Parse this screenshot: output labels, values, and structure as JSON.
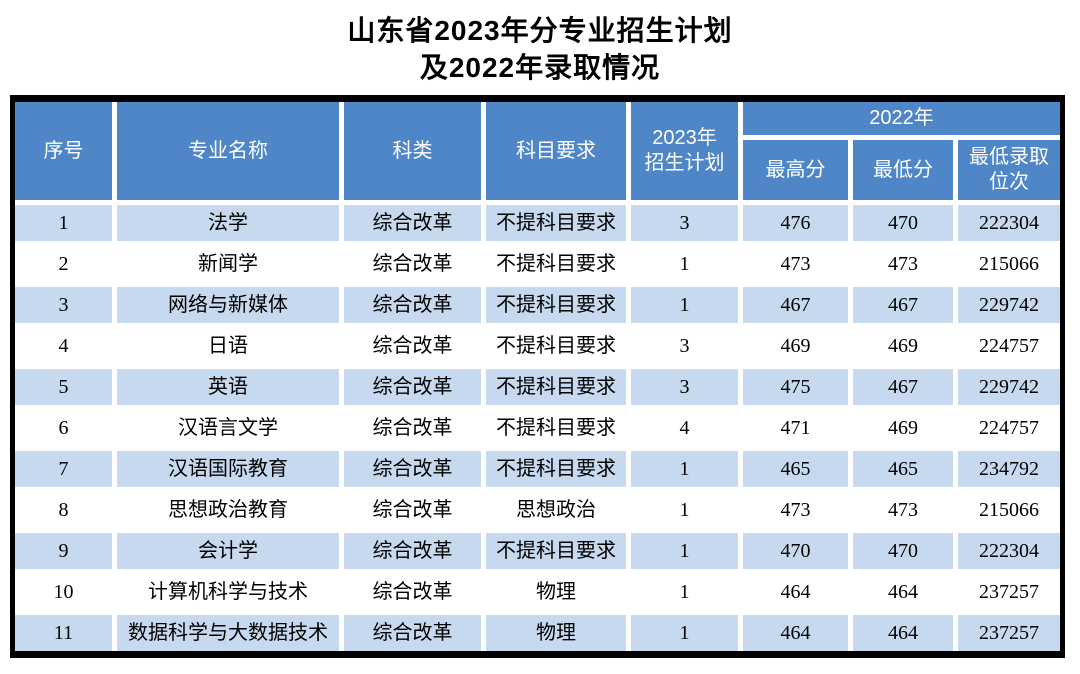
{
  "title": {
    "line1": "山东省2023年分专业招生计划",
    "line2": "及2022年录取情况"
  },
  "table": {
    "headers": {
      "no": "序号",
      "major": "专业名称",
      "category": "科类",
      "subject_req": "科目要求",
      "plan_line1": "2023年",
      "plan_line2": "招生计划",
      "year_2022": "2022年",
      "max_score": "最高分",
      "min_score": "最低分",
      "rank_line1": "最低录取",
      "rank_line2": "位次"
    },
    "rows": [
      {
        "no": "1",
        "major": "法学",
        "category": "综合改革",
        "req": "不提科目要求",
        "plan": "3",
        "max": "476",
        "min": "470",
        "rank": "222304"
      },
      {
        "no": "2",
        "major": "新闻学",
        "category": "综合改革",
        "req": "不提科目要求",
        "plan": "1",
        "max": "473",
        "min": "473",
        "rank": "215066"
      },
      {
        "no": "3",
        "major": "网络与新媒体",
        "category": "综合改革",
        "req": "不提科目要求",
        "plan": "1",
        "max": "467",
        "min": "467",
        "rank": "229742"
      },
      {
        "no": "4",
        "major": "日语",
        "category": "综合改革",
        "req": "不提科目要求",
        "plan": "3",
        "max": "469",
        "min": "469",
        "rank": "224757"
      },
      {
        "no": "5",
        "major": "英语",
        "category": "综合改革",
        "req": "不提科目要求",
        "plan": "3",
        "max": "475",
        "min": "467",
        "rank": "229742"
      },
      {
        "no": "6",
        "major": "汉语言文学",
        "category": "综合改革",
        "req": "不提科目要求",
        "plan": "4",
        "max": "471",
        "min": "469",
        "rank": "224757"
      },
      {
        "no": "7",
        "major": "汉语国际教育",
        "category": "综合改革",
        "req": "不提科目要求",
        "plan": "1",
        "max": "465",
        "min": "465",
        "rank": "234792"
      },
      {
        "no": "8",
        "major": "思想政治教育",
        "category": "综合改革",
        "req": "思想政治",
        "plan": "1",
        "max": "473",
        "min": "473",
        "rank": "215066"
      },
      {
        "no": "9",
        "major": "会计学",
        "category": "综合改革",
        "req": "不提科目要求",
        "plan": "1",
        "max": "470",
        "min": "470",
        "rank": "222304"
      },
      {
        "no": "10",
        "major": "计算机科学与技术",
        "category": "综合改革",
        "req": "物理",
        "plan": "1",
        "max": "464",
        "min": "464",
        "rank": "237257"
      },
      {
        "no": "11",
        "major": "数据科学与大数据技术",
        "category": "综合改革",
        "req": "物理",
        "plan": "1",
        "max": "464",
        "min": "464",
        "rank": "237257"
      }
    ]
  },
  "colors": {
    "header_bg": "#4e86c8",
    "stripe_bg": "#c6d9ee",
    "border": "#000000"
  }
}
